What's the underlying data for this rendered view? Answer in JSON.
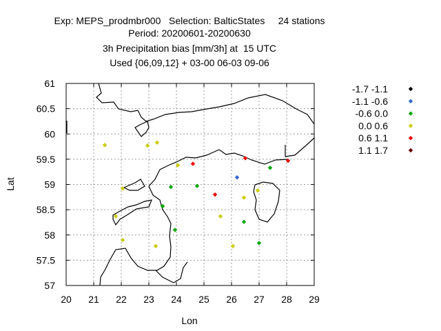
{
  "title_lines": [
    "Exp: MEPS_prodmbr000   Selection: BalticStates     24 stations",
    "Period: 20200601-20200630",
    "3h Precipitation bias [mm/3h] at  15 UTC",
    "Used {06,09,12} + 03-00 06-03 09-06"
  ],
  "chart_data": {
    "type": "scatter",
    "xlabel": "Lon",
    "ylabel": "Lat",
    "xlim": [
      20,
      29
    ],
    "ylim": [
      57,
      61
    ],
    "xticks": [
      "20",
      "21",
      "22",
      "23",
      "24",
      "25",
      "26",
      "27",
      "28",
      "29"
    ],
    "yticks": [
      "57",
      "57.5",
      "58",
      "58.5",
      "59",
      "59.5",
      "60",
      "60.5",
      "61"
    ],
    "grid": true,
    "legend_position": "right",
    "legend": [
      {
        "label": "-1.7 -1.1",
        "color": "#000000"
      },
      {
        "label": "-1.1 -0.6",
        "color": "#3366cc"
      },
      {
        "label": "-0.6 0.0",
        "color": "#00aa00"
      },
      {
        "label": "0.0 0.6",
        "color": "#cccc00"
      },
      {
        "label": "0.6 1.1",
        "color": "#ee0000"
      },
      {
        "label": "1.1 1.7",
        "color": "#660000"
      }
    ],
    "points": [
      {
        "lon": 21.4,
        "lat": 59.78,
        "cls": 3
      },
      {
        "lon": 22.95,
        "lat": 59.77,
        "cls": 3
      },
      {
        "lon": 23.3,
        "lat": 59.83,
        "cls": 3
      },
      {
        "lon": 24.05,
        "lat": 59.38,
        "cls": 3
      },
      {
        "lon": 24.6,
        "lat": 59.41,
        "cls": 4
      },
      {
        "lon": 26.5,
        "lat": 59.52,
        "cls": 4
      },
      {
        "lon": 27.4,
        "lat": 59.33,
        "cls": 2
      },
      {
        "lon": 28.05,
        "lat": 59.47,
        "cls": 4
      },
      {
        "lon": 26.2,
        "lat": 59.14,
        "cls": 1
      },
      {
        "lon": 23.8,
        "lat": 58.95,
        "cls": 2
      },
      {
        "lon": 24.75,
        "lat": 58.97,
        "cls": 2
      },
      {
        "lon": 22.05,
        "lat": 58.92,
        "cls": 3
      },
      {
        "lon": 26.95,
        "lat": 58.88,
        "cls": 3
      },
      {
        "lon": 25.4,
        "lat": 58.8,
        "cls": 4
      },
      {
        "lon": 26.45,
        "lat": 58.74,
        "cls": 3
      },
      {
        "lon": 23.5,
        "lat": 58.57,
        "cls": 2
      },
      {
        "lon": 21.8,
        "lat": 58.37,
        "cls": 3
      },
      {
        "lon": 25.6,
        "lat": 58.37,
        "cls": 3
      },
      {
        "lon": 26.45,
        "lat": 58.26,
        "cls": 2
      },
      {
        "lon": 23.95,
        "lat": 58.1,
        "cls": 2
      },
      {
        "lon": 22.05,
        "lat": 57.9,
        "cls": 3
      },
      {
        "lon": 23.25,
        "lat": 57.78,
        "cls": 3
      },
      {
        "lon": 26.05,
        "lat": 57.78,
        "cls": 3
      },
      {
        "lon": 27.0,
        "lat": 57.84,
        "cls": 2
      }
    ]
  }
}
